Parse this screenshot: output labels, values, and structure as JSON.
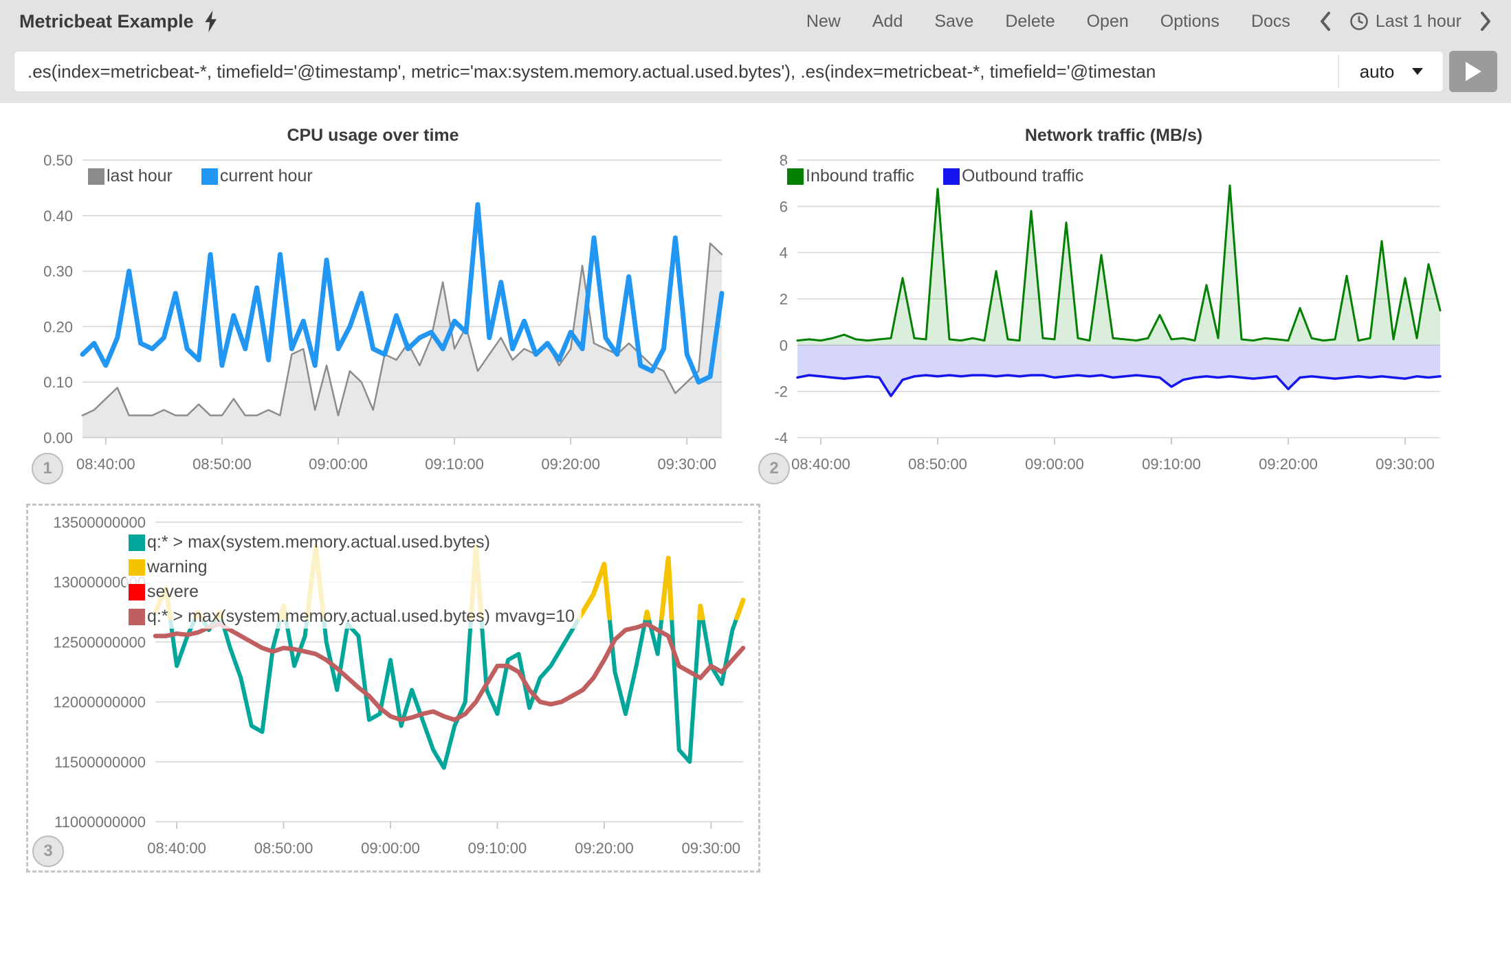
{
  "header": {
    "title": "Metricbeat Example",
    "menu": [
      "New",
      "Add",
      "Save",
      "Delete",
      "Open",
      "Options",
      "Docs"
    ],
    "time_label": "Last 1 hour"
  },
  "query": {
    "value": ".es(index=metricbeat-*, timefield='@timestamp', metric='max:system.memory.actual.used.bytes'), .es(index=metricbeat-*, timefield='@timestan",
    "interval": "auto"
  },
  "badges": {
    "cpu": "1",
    "net": "2",
    "mem": "3"
  },
  "colors": {
    "topbar_bg": "#e3e3e3",
    "grid": "#d6d6d6",
    "axis_text": "#747474"
  },
  "chart_data": [
    {
      "id": "cpu",
      "type": "line",
      "title": "CPU usage over time",
      "ylim": [
        0,
        0.5
      ],
      "yticks": [
        "0.50",
        "0.40",
        "0.30",
        "0.20",
        "0.10",
        "0.00"
      ],
      "y_multiplier": 1,
      "t_max_minutes": 55,
      "x_start_time": "08:38:00",
      "xticks": [
        {
          "label": "08:40:00",
          "t": 2
        },
        {
          "label": "08:50:00",
          "t": 12
        },
        {
          "label": "09:00:00",
          "t": 22
        },
        {
          "label": "09:10:00",
          "t": 32
        },
        {
          "label": "09:20:00",
          "t": 42
        },
        {
          "label": "09:30:00",
          "t": 52
        }
      ],
      "series": [
        {
          "name": "last hour",
          "color": "#8c8c8c",
          "fill": "rgba(0,0,0,0.09)",
          "fill_to": 0,
          "values": [
            0.04,
            0.05,
            0.07,
            0.09,
            0.04,
            0.04,
            0.04,
            0.05,
            0.04,
            0.04,
            0.06,
            0.04,
            0.04,
            0.07,
            0.04,
            0.04,
            0.05,
            0.04,
            0.15,
            0.16,
            0.05,
            0.13,
            0.04,
            0.12,
            0.1,
            0.05,
            0.15,
            0.14,
            0.17,
            0.13,
            0.18,
            0.28,
            0.16,
            0.2,
            0.12,
            0.15,
            0.18,
            0.14,
            0.16,
            0.15,
            0.17,
            0.13,
            0.16,
            0.31,
            0.17,
            0.16,
            0.15,
            0.17,
            0.15,
            0.13,
            0.12,
            0.08,
            0.1,
            0.12,
            0.35,
            0.33
          ]
        },
        {
          "name": "current hour",
          "color": "#2196f3",
          "values": [
            0.15,
            0.17,
            0.13,
            0.18,
            0.3,
            0.17,
            0.16,
            0.18,
            0.26,
            0.16,
            0.14,
            0.33,
            0.13,
            0.22,
            0.16,
            0.27,
            0.14,
            0.33,
            0.16,
            0.21,
            0.13,
            0.32,
            0.16,
            0.2,
            0.26,
            0.16,
            0.15,
            0.22,
            0.16,
            0.18,
            0.19,
            0.16,
            0.21,
            0.19,
            0.42,
            0.18,
            0.28,
            0.16,
            0.21,
            0.15,
            0.17,
            0.14,
            0.19,
            0.16,
            0.36,
            0.18,
            0.15,
            0.29,
            0.13,
            0.12,
            0.16,
            0.36,
            0.15,
            0.1,
            0.11,
            0.26
          ]
        }
      ]
    },
    {
      "id": "net",
      "type": "line",
      "title": "Network traffic (MB/s)",
      "ylim": [
        -4,
        8
      ],
      "yticks": [
        "8",
        "6",
        "4",
        "2",
        "0",
        "-2",
        "-4"
      ],
      "y_multiplier": 1,
      "t_max_minutes": 55,
      "x_start_time": "08:38:00",
      "xticks": [
        {
          "label": "08:40:00",
          "t": 2
        },
        {
          "label": "08:50:00",
          "t": 12
        },
        {
          "label": "09:00:00",
          "t": 22
        },
        {
          "label": "09:10:00",
          "t": 32
        },
        {
          "label": "09:20:00",
          "t": 42
        },
        {
          "label": "09:30:00",
          "t": 52
        }
      ],
      "series": [
        {
          "name": "Inbound traffic",
          "color": "#018001",
          "fill": "rgba(1,128,1,0.14)",
          "fill_to": 0,
          "values": [
            0.2,
            0.25,
            0.2,
            0.3,
            0.45,
            0.25,
            0.2,
            0.25,
            0.3,
            2.9,
            0.3,
            0.25,
            6.8,
            0.25,
            0.2,
            0.3,
            0.2,
            3.2,
            0.25,
            0.2,
            5.8,
            0.3,
            0.25,
            5.3,
            0.3,
            0.2,
            3.9,
            0.3,
            0.25,
            0.2,
            0.3,
            1.3,
            0.25,
            0.3,
            0.2,
            2.6,
            0.3,
            6.9,
            0.25,
            0.2,
            0.3,
            0.25,
            0.2,
            1.6,
            0.3,
            0.2,
            0.25,
            3.0,
            0.2,
            0.3,
            4.5,
            0.25,
            2.9,
            0.3,
            3.5,
            1.5
          ]
        },
        {
          "name": "Outbound traffic",
          "color": "#1515f0",
          "fill": "rgba(70,70,235,0.22)",
          "fill_to": 0,
          "values": [
            -1.4,
            -1.3,
            -1.35,
            -1.4,
            -1.45,
            -1.4,
            -1.35,
            -1.4,
            -2.2,
            -1.5,
            -1.35,
            -1.3,
            -1.35,
            -1.3,
            -1.35,
            -1.3,
            -1.3,
            -1.35,
            -1.3,
            -1.35,
            -1.3,
            -1.3,
            -1.4,
            -1.35,
            -1.3,
            -1.35,
            -1.3,
            -1.4,
            -1.35,
            -1.3,
            -1.35,
            -1.4,
            -1.8,
            -1.5,
            -1.4,
            -1.35,
            -1.4,
            -1.35,
            -1.4,
            -1.45,
            -1.4,
            -1.35,
            -1.9,
            -1.4,
            -1.35,
            -1.4,
            -1.45,
            -1.4,
            -1.35,
            -1.4,
            -1.35,
            -1.4,
            -1.45,
            -1.35,
            -1.4,
            -1.35
          ]
        }
      ]
    },
    {
      "id": "mem",
      "type": "line",
      "title": "",
      "ylim": [
        11000000000,
        13500000000
      ],
      "yticks": [
        "13500000000",
        "13000000000",
        "12500000000",
        "12000000000",
        "11500000000",
        "11000000000"
      ],
      "y_multiplier": 1000000000,
      "t_max_minutes": 55,
      "x_start_time": "08:38:00",
      "xticks": [
        {
          "label": "08:40:00",
          "t": 2
        },
        {
          "label": "08:50:00",
          "t": 12
        },
        {
          "label": "09:00:00",
          "t": 22
        },
        {
          "label": "09:10:00",
          "t": 32
        },
        {
          "label": "09:20:00",
          "t": 42
        },
        {
          "label": "09:30:00",
          "t": 52
        }
      ],
      "series": [
        {
          "name": "q:* > max(system.memory.actual.used.bytes)",
          "color": "#00a69a",
          "values": [
            12.75,
            12.95,
            12.3,
            12.55,
            12.75,
            12.6,
            12.75,
            12.45,
            12.2,
            11.8,
            11.75,
            12.45,
            12.8,
            12.3,
            12.55,
            13.3,
            12.5,
            12.1,
            12.65,
            12.55,
            11.85,
            11.9,
            12.35,
            11.8,
            12.1,
            11.85,
            11.6,
            11.45,
            11.8,
            12.0,
            13.3,
            12.1,
            11.9,
            12.35,
            12.4,
            11.95,
            12.2,
            12.3,
            12.45,
            12.6,
            12.75,
            12.9,
            13.15,
            12.25,
            11.9,
            12.3,
            12.75,
            12.4,
            13.2,
            11.6,
            11.5,
            12.8,
            12.3,
            12.15,
            12.6,
            12.85
          ]
        },
        {
          "name": "q:* > max(system.memory.actual.used.bytes) mvavg=10",
          "color": "#bf5f5f",
          "values": [
            12.55,
            12.55,
            12.57,
            12.56,
            12.58,
            12.62,
            12.65,
            12.6,
            12.55,
            12.5,
            12.45,
            12.42,
            12.45,
            12.44,
            12.42,
            12.4,
            12.35,
            12.28,
            12.2,
            12.12,
            12.05,
            11.95,
            11.88,
            11.85,
            11.87,
            11.9,
            11.92,
            11.88,
            11.85,
            11.9,
            12.0,
            12.15,
            12.3,
            12.3,
            12.25,
            12.1,
            12.0,
            11.98,
            12.0,
            12.05,
            12.1,
            12.2,
            12.35,
            12.52,
            12.6,
            12.62,
            12.65,
            12.6,
            12.55,
            12.3,
            12.25,
            12.2,
            12.3,
            12.25,
            12.35,
            12.45
          ]
        }
      ],
      "thresholds": [
        {
          "name": "warning",
          "color": "#f6c300",
          "above": 12.7
        },
        {
          "name": "severe",
          "color": "#ff0000",
          "above": 13.5
        }
      ]
    }
  ]
}
